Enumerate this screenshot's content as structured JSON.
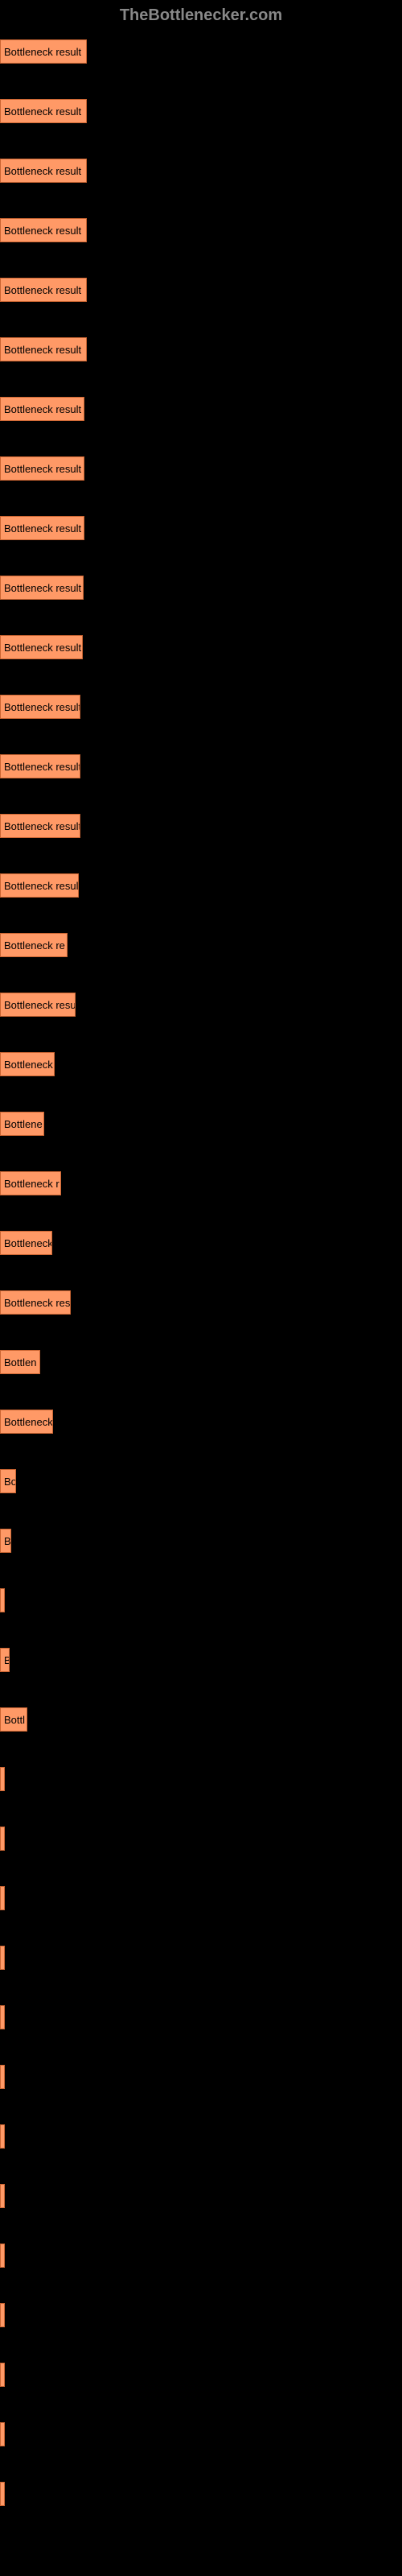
{
  "header": {
    "title": "TheBottlenecker.com"
  },
  "chart": {
    "type": "bar",
    "bar_color": "#ff9966",
    "bar_border_color": "#cc6633",
    "background_color": "#000000",
    "label_color": "#000000",
    "header_color": "#888888",
    "bars": [
      {
        "label": "Bottleneck result",
        "width": 108
      },
      {
        "label": "Bottleneck result",
        "width": 108
      },
      {
        "label": "Bottleneck result",
        "width": 108
      },
      {
        "label": "Bottleneck result",
        "width": 108
      },
      {
        "label": "Bottleneck result",
        "width": 108
      },
      {
        "label": "Bottleneck result",
        "width": 108
      },
      {
        "label": "Bottleneck result",
        "width": 105
      },
      {
        "label": "Bottleneck result",
        "width": 105
      },
      {
        "label": "Bottleneck result",
        "width": 105
      },
      {
        "label": "Bottleneck result",
        "width": 104
      },
      {
        "label": "Bottleneck result",
        "width": 103
      },
      {
        "label": "Bottleneck result",
        "width": 100
      },
      {
        "label": "Bottleneck result",
        "width": 100
      },
      {
        "label": "Bottleneck result",
        "width": 100
      },
      {
        "label": "Bottleneck result",
        "width": 98
      },
      {
        "label": "Bottleneck re",
        "width": 84
      },
      {
        "label": "Bottleneck resul",
        "width": 94
      },
      {
        "label": "Bottleneck",
        "width": 68
      },
      {
        "label": "Bottlene",
        "width": 55
      },
      {
        "label": "Bottleneck r",
        "width": 76
      },
      {
        "label": "Bottleneck",
        "width": 65
      },
      {
        "label": "Bottleneck res",
        "width": 88
      },
      {
        "label": "Bottlen",
        "width": 50
      },
      {
        "label": "Bottleneck",
        "width": 66
      },
      {
        "label": "Bo",
        "width": 20
      },
      {
        "label": "B",
        "width": 14
      },
      {
        "label": "",
        "width": 2
      },
      {
        "label": "B",
        "width": 12
      },
      {
        "label": "Bottl",
        "width": 34
      },
      {
        "label": "",
        "width": 3
      },
      {
        "label": "",
        "width": 2
      },
      {
        "label": "",
        "width": 2
      },
      {
        "label": "",
        "width": 2
      },
      {
        "label": "",
        "width": 3
      },
      {
        "label": "",
        "width": 2
      },
      {
        "label": "",
        "width": 2
      },
      {
        "label": "",
        "width": 2
      },
      {
        "label": "",
        "width": 3
      },
      {
        "label": "",
        "width": 2
      },
      {
        "label": "",
        "width": 2
      },
      {
        "label": "",
        "width": 2
      },
      {
        "label": "",
        "width": 2
      }
    ]
  }
}
